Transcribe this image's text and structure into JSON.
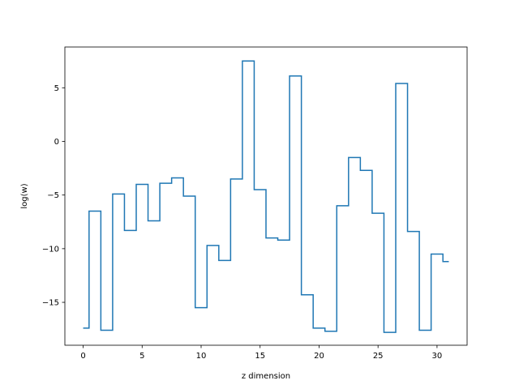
{
  "chart_data": {
    "type": "line",
    "step": "mid",
    "xlabel": "z dimension",
    "ylabel": "log(w)",
    "xlim": [
      -1.55,
      32.55
    ],
    "ylim": [
      -19.0,
      8.8
    ],
    "xticks": [
      0,
      5,
      10,
      15,
      20,
      25,
      30
    ],
    "yticks": [
      -15,
      -10,
      -5,
      0,
      5
    ],
    "color": "#1f77b4",
    "series": [
      {
        "x": [
          0,
          1,
          2,
          3,
          4,
          5,
          6,
          7,
          8,
          9,
          10,
          11,
          12,
          13,
          14,
          15,
          16,
          17,
          18,
          19,
          20,
          21,
          22,
          23,
          24,
          25,
          26,
          27,
          28,
          29,
          30,
          31
        ],
        "values": [
          -17.4,
          -6.5,
          -17.6,
          -4.9,
          -8.3,
          -4.0,
          -7.4,
          -3.9,
          -3.4,
          -5.1,
          -15.5,
          -9.7,
          -11.1,
          -3.5,
          7.5,
          -4.5,
          -9.0,
          -9.2,
          6.1,
          -14.3,
          -17.4,
          -17.7,
          -6.0,
          -1.5,
          -2.7,
          -6.7,
          -17.8,
          5.4,
          -8.4,
          -17.6,
          -10.5,
          -11.2
        ]
      }
    ]
  }
}
